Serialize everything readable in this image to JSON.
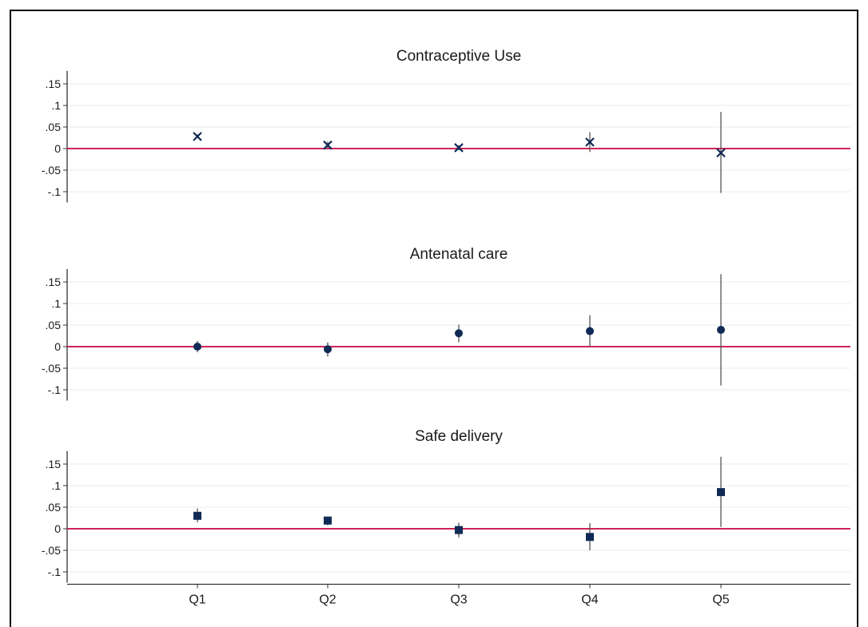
{
  "chart_data": {
    "type": "scatter",
    "x_categories": [
      "Q1",
      "Q2",
      "Q3",
      "Q4",
      "Q5"
    ],
    "y_ticks": [
      0.15,
      0.1,
      0.05,
      0,
      -0.05,
      -0.1
    ],
    "y_tick_labels": [
      ".15",
      ".1",
      ".05",
      "0",
      "-.05",
      "-.1"
    ],
    "ylim": [
      -0.125,
      0.18
    ],
    "reference_line": {
      "y": 0,
      "color": "#d0245a"
    },
    "grid": "horizontal",
    "point_color": "#0f2a55",
    "panels": [
      {
        "title": "Contraceptive Use",
        "marker": "x",
        "points": [
          {
            "x": "Q1",
            "y": 0.028,
            "lo": 0.024,
            "hi": 0.033
          },
          {
            "x": "Q2",
            "y": 0.008,
            "lo": 0.0,
            "hi": 0.016
          },
          {
            "x": "Q3",
            "y": 0.002,
            "lo": -0.004,
            "hi": 0.008
          },
          {
            "x": "Q4",
            "y": 0.015,
            "lo": -0.008,
            "hi": 0.038
          },
          {
            "x": "Q5",
            "y": -0.01,
            "lo": -0.103,
            "hi": 0.085
          }
        ]
      },
      {
        "title": "Antenatal care",
        "marker": "circle",
        "points": [
          {
            "x": "Q1",
            "y": 0.0,
            "lo": -0.013,
            "hi": 0.013
          },
          {
            "x": "Q2",
            "y": -0.006,
            "lo": -0.023,
            "hi": 0.01
          },
          {
            "x": "Q3",
            "y": 0.031,
            "lo": 0.01,
            "hi": 0.051
          },
          {
            "x": "Q4",
            "y": 0.036,
            "lo": 0.0,
            "hi": 0.073
          },
          {
            "x": "Q5",
            "y": 0.039,
            "lo": -0.09,
            "hi": 0.168
          }
        ]
      },
      {
        "title": "Safe delivery",
        "marker": "square",
        "points": [
          {
            "x": "Q1",
            "y": 0.03,
            "lo": 0.015,
            "hi": 0.047
          },
          {
            "x": "Q2",
            "y": 0.019,
            "lo": 0.008,
            "hi": 0.028
          },
          {
            "x": "Q3",
            "y": -0.003,
            "lo": -0.02,
            "hi": 0.014
          },
          {
            "x": "Q4",
            "y": -0.019,
            "lo": -0.05,
            "hi": 0.013
          },
          {
            "x": "Q5",
            "y": 0.085,
            "lo": 0.004,
            "hi": 0.167
          }
        ]
      }
    ]
  }
}
